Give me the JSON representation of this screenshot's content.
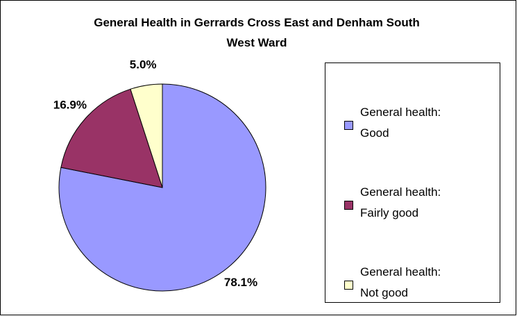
{
  "chart_data": {
    "type": "pie",
    "title": "General Health in Gerrards Cross East and Denham South West Ward",
    "categories": [
      "General health: Good",
      "General health: Fairly good",
      "General health: Not good"
    ],
    "values": [
      78.1,
      16.9,
      5.0
    ],
    "value_labels": [
      "78.1%",
      "16.9%",
      "5.0%"
    ],
    "colors": [
      "#9999ff",
      "#993366",
      "#ffffcc"
    ],
    "legend": "right"
  }
}
